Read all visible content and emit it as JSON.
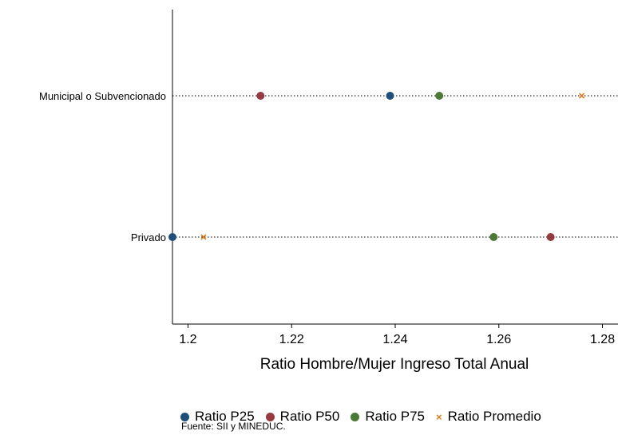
{
  "chart_data": {
    "type": "scatter",
    "title": "",
    "xlabel": "Ratio Hombre/Mujer Ingreso Total Anual",
    "ylabel": "",
    "xlim": [
      1.197,
      1.283
    ],
    "x_ticks": [
      "1.2",
      "1.22",
      "1.24",
      "1.26",
      "1.28"
    ],
    "categories": [
      "Municipal o Subvencionado",
      "Privado"
    ],
    "series": [
      {
        "name": "Ratio P25",
        "color": "#1f4e79",
        "marker": "circle",
        "values": [
          1.239,
          1.197
        ]
      },
      {
        "name": "Ratio P50",
        "color": "#953a3f",
        "marker": "circle",
        "values": [
          1.214,
          1.27
        ]
      },
      {
        "name": "Ratio P75",
        "color": "#4a7a35",
        "marker": "circle",
        "values": [
          1.2485,
          1.259
        ]
      },
      {
        "name": "Ratio Promedio",
        "color": "#e07b1a",
        "marker": "x",
        "values": [
          1.276,
          1.203
        ]
      }
    ],
    "grid": false,
    "legend_position": "bottom"
  },
  "note": "Fuente: SII y MINEDUC."
}
